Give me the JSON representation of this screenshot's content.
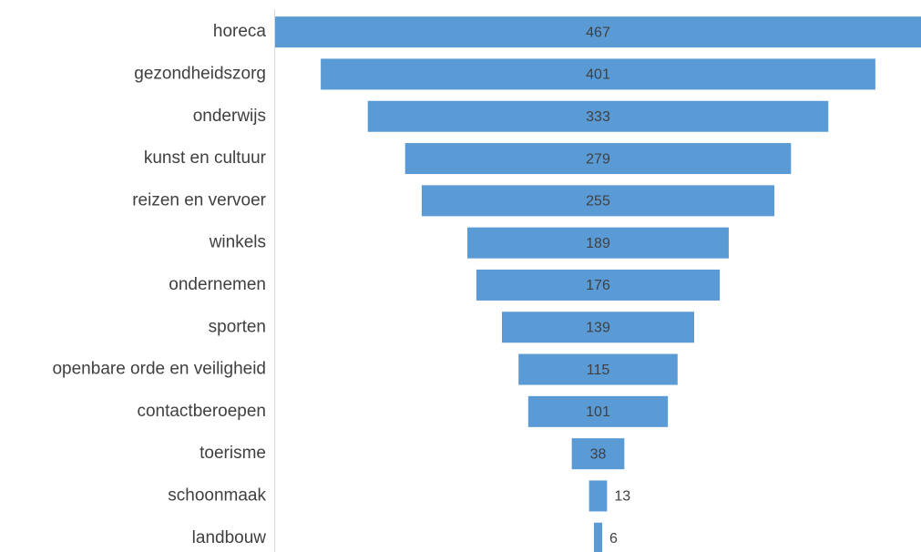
{
  "chart_data": {
    "type": "funnel",
    "categories": [
      "horeca",
      "gezondheidszorg",
      "onderwijs",
      "kunst en cultuur",
      "reizen en vervoer",
      "winkels",
      "ondernemen",
      "sporten",
      "openbare orde en veiligheid",
      "contactberoepen",
      "toerisme",
      "schoonmaak",
      "landbouw"
    ],
    "values": [
      467,
      401,
      333,
      279,
      255,
      189,
      176,
      139,
      115,
      101,
      38,
      13,
      6
    ],
    "color": "#5b9bd5"
  }
}
